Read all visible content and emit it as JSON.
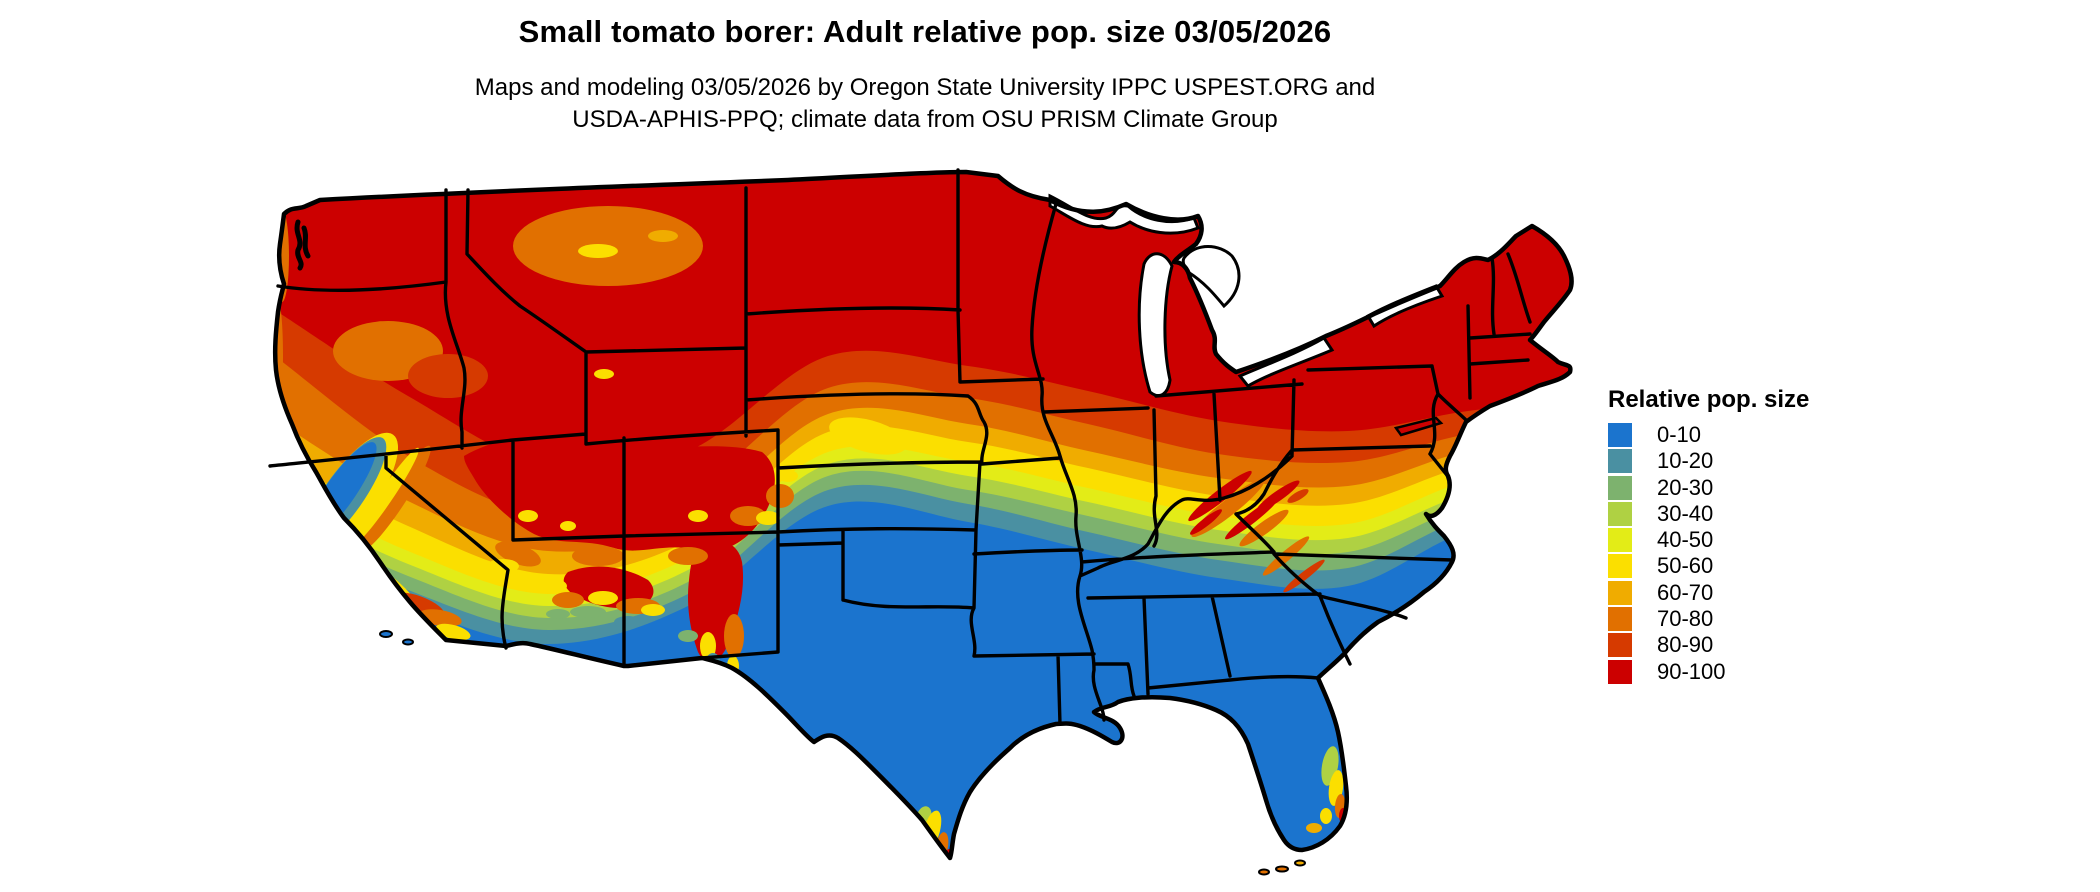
{
  "header": {
    "title": "Small tomato borer: Adult relative pop. size 03/05/2026",
    "subtitle_line1": "Maps and modeling 03/05/2026 by Oregon State University IPPC USPEST.ORG and",
    "subtitle_line2": "USDA-APHIS-PPQ; climate data from OSU PRISM Climate Group"
  },
  "legend": {
    "title": "Relative pop. size",
    "entries": [
      {
        "label": "0-10",
        "color": "#1B74CE"
      },
      {
        "label": "10-20",
        "color": "#4A90A2"
      },
      {
        "label": "20-30",
        "color": "#7DB26E"
      },
      {
        "label": "30-40",
        "color": "#AFD143"
      },
      {
        "label": "40-50",
        "color": "#E3EC17"
      },
      {
        "label": "50-60",
        "color": "#FBDF00"
      },
      {
        "label": "60-70",
        "color": "#F0AC00"
      },
      {
        "label": "70-80",
        "color": "#E17000"
      },
      {
        "label": "80-90",
        "color": "#D63A00"
      },
      {
        "label": "90-100",
        "color": "#CC0000"
      }
    ]
  },
  "chart_data": {
    "type": "heatmap",
    "subtype": "choropleth-raster-map",
    "title": "Small tomato borer: Adult relative pop. size 03/05/2026",
    "subtitle": "Maps and modeling 03/05/2026 by Oregon State University IPPC USPEST.ORG and USDA-APHIS-PPQ; climate data from OSU PRISM Climate Group",
    "species": "Small tomato borer",
    "metric": "Adult relative pop. size",
    "date": "03/05/2026",
    "region": "Contiguous United States",
    "legend_title": "Relative pop. size",
    "legend_position": "right",
    "value_range": [
      0,
      100
    ],
    "classes": [
      {
        "range": "0-10",
        "min": 0,
        "max": 10,
        "color": "#1B74CE"
      },
      {
        "range": "10-20",
        "min": 10,
        "max": 20,
        "color": "#4A90A2"
      },
      {
        "range": "20-30",
        "min": 20,
        "max": 30,
        "color": "#7DB26E"
      },
      {
        "range": "30-40",
        "min": 30,
        "max": 40,
        "color": "#AFD143"
      },
      {
        "range": "40-50",
        "min": 40,
        "max": 50,
        "color": "#E3EC17"
      },
      {
        "range": "50-60",
        "min": 50,
        "max": 60,
        "color": "#FBDF00"
      },
      {
        "range": "60-70",
        "min": 60,
        "max": 70,
        "color": "#F0AC00"
      },
      {
        "range": "70-80",
        "min": 70,
        "max": 80,
        "color": "#E17000"
      },
      {
        "range": "80-90",
        "min": 80,
        "max": 90,
        "color": "#D63A00"
      },
      {
        "range": "90-100",
        "min": 90,
        "max": 100,
        "color": "#CC0000"
      }
    ],
    "spatial_pattern": "Latitudinal gradient: high relative population size (90-100, red) across the northern tier, grading south through orange, yellow and green bands to low values (0-10, blue) across the entire southern U.S.",
    "regional_values": [
      {
        "region": "Northern tier: WA/OR/ID/MT/WY/ND/SD/MN/WI/MI, Great Lakes states, NY, PA, New England",
        "value_range": "80-100"
      },
      {
        "region": "Great Basin and Rockies: NV, UT, CO, N AZ, central NM mountains",
        "value_range": "70-100 with 40-60 pockets"
      },
      {
        "region": "Central transition band: NE, KS, IA, MO, IL, IN, OH valley, KY, WV, MD, VA",
        "value_range": "20-70 north-to-south gradient"
      },
      {
        "region": "California Central Valley and south coast",
        "value_range": "0-20"
      },
      {
        "region": "Southern tier: S CA, S AZ/NM deserts, TX, OK, Gulf states, TN, SE coast, FL",
        "value_range": "0-10"
      },
      {
        "region": "Appalachian ridges (WV/VA/E TN/W NC)",
        "value_range": "60-100 narrow streaks"
      },
      {
        "region": "South Florida Atlantic coast and Keys",
        "value_range": "30-90 pockets"
      },
      {
        "region": "Southern tip of Texas",
        "value_range": "40-90 pockets"
      }
    ],
    "projection": "conic (Albers-type), state boundaries drawn in black",
    "no_data_areas": [
      "Great Lakes (white)",
      "ocean/Mexico/Canada (white)"
    ]
  }
}
